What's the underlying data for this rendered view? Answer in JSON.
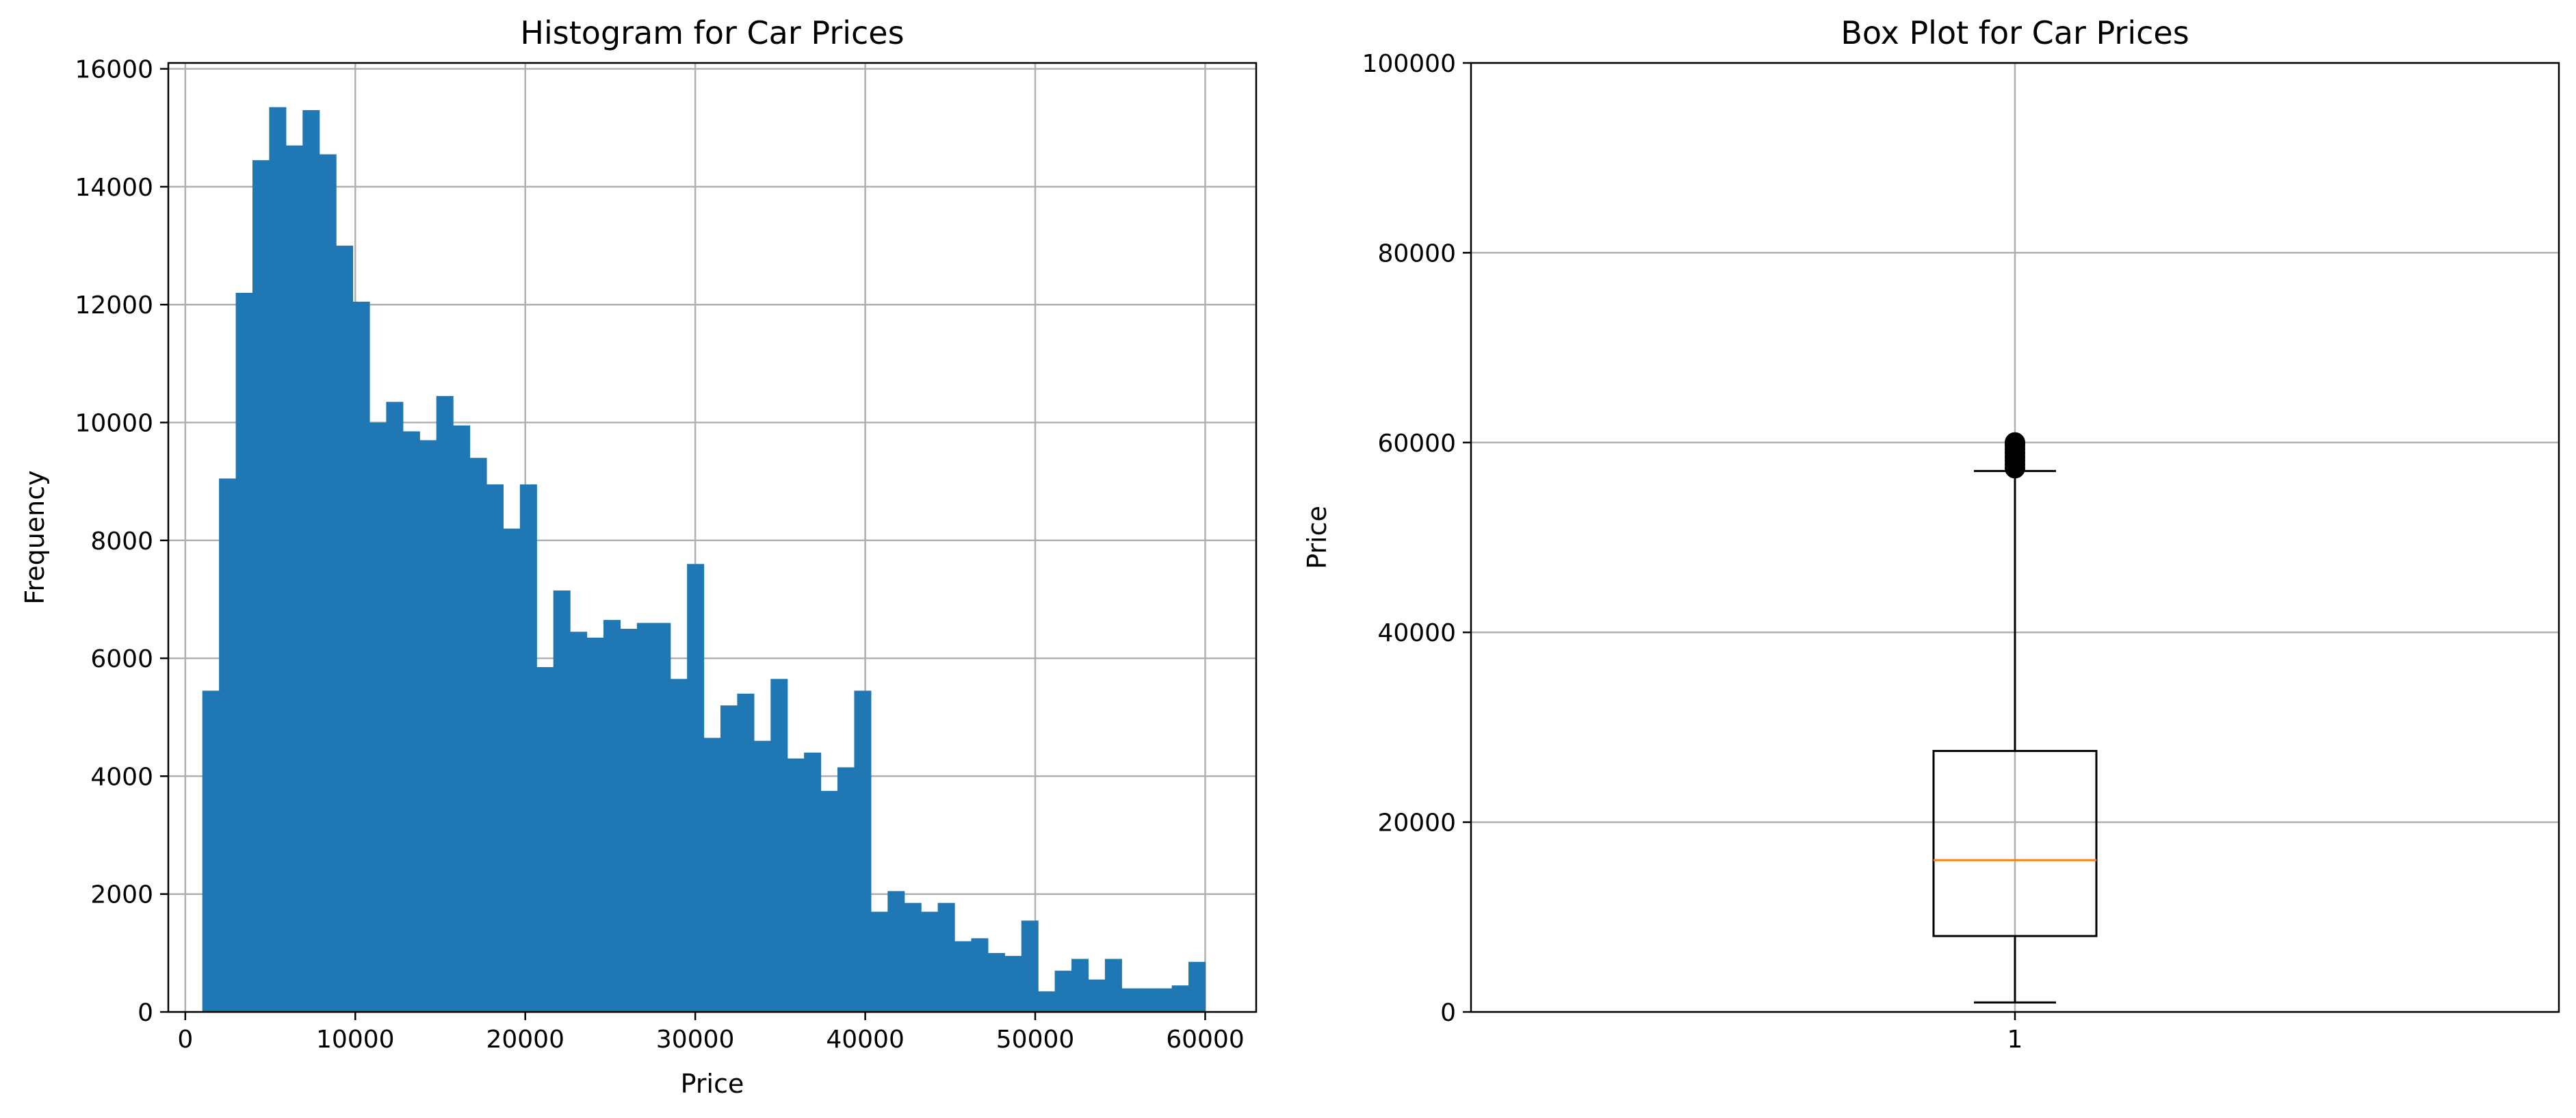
{
  "chart_data": [
    {
      "type": "bar",
      "title": "Histogram for Car Prices",
      "xlabel": "Price",
      "ylabel": "Frequency",
      "xlim": [
        -1000,
        63000
      ],
      "ylim": [
        0,
        16100
      ],
      "xticks": [
        0,
        10000,
        20000,
        30000,
        40000,
        50000,
        60000
      ],
      "xtick_labels": [
        "0",
        "10000",
        "20000",
        "30000",
        "40000",
        "50000",
        "60000"
      ],
      "yticks": [
        0,
        2000,
        4000,
        6000,
        8000,
        10000,
        12000,
        14000,
        16000
      ],
      "ytick_labels": [
        "0",
        "2000",
        "4000",
        "6000",
        "8000",
        "10000",
        "12000",
        "14000",
        "16000"
      ],
      "grid": true,
      "bar_color": "#1f77b4",
      "bin_start": 1000,
      "bin_end": 60000,
      "values": [
        5450,
        9050,
        12200,
        14450,
        15350,
        14700,
        15300,
        14550,
        13000,
        12050,
        10000,
        10350,
        9850,
        9700,
        10450,
        9950,
        9400,
        8950,
        8200,
        8950,
        5850,
        7150,
        6450,
        6350,
        6650,
        6500,
        6600,
        6600,
        5650,
        7600,
        4650,
        5200,
        5400,
        4600,
        5650,
        4300,
        4400,
        3750,
        4150,
        5450,
        1700,
        2050,
        1850,
        1700,
        1850,
        1200,
        1250,
        1000,
        950,
        1550,
        350,
        700,
        900,
        550,
        900,
        400,
        400,
        400,
        450,
        850
      ]
    },
    {
      "type": "box",
      "title": "Box Plot for Car Prices",
      "xlabel": "",
      "ylabel": "Price",
      "ylim": [
        0,
        100000
      ],
      "yticks": [
        0,
        20000,
        40000,
        60000,
        80000,
        100000
      ],
      "ytick_labels": [
        "0",
        "20000",
        "40000",
        "60000",
        "80000",
        "100000"
      ],
      "xtick_labels": [
        "1"
      ],
      "grid": true,
      "box_color": "#000000",
      "median_color": "#ff7f0e",
      "whisker_low": 1000,
      "q1": 8000,
      "median": 16000,
      "q3": 27500,
      "whisker_high": 57000,
      "outliers": [
        57300,
        57700,
        58100,
        58500,
        58900,
        59300,
        59700,
        60000
      ]
    }
  ]
}
